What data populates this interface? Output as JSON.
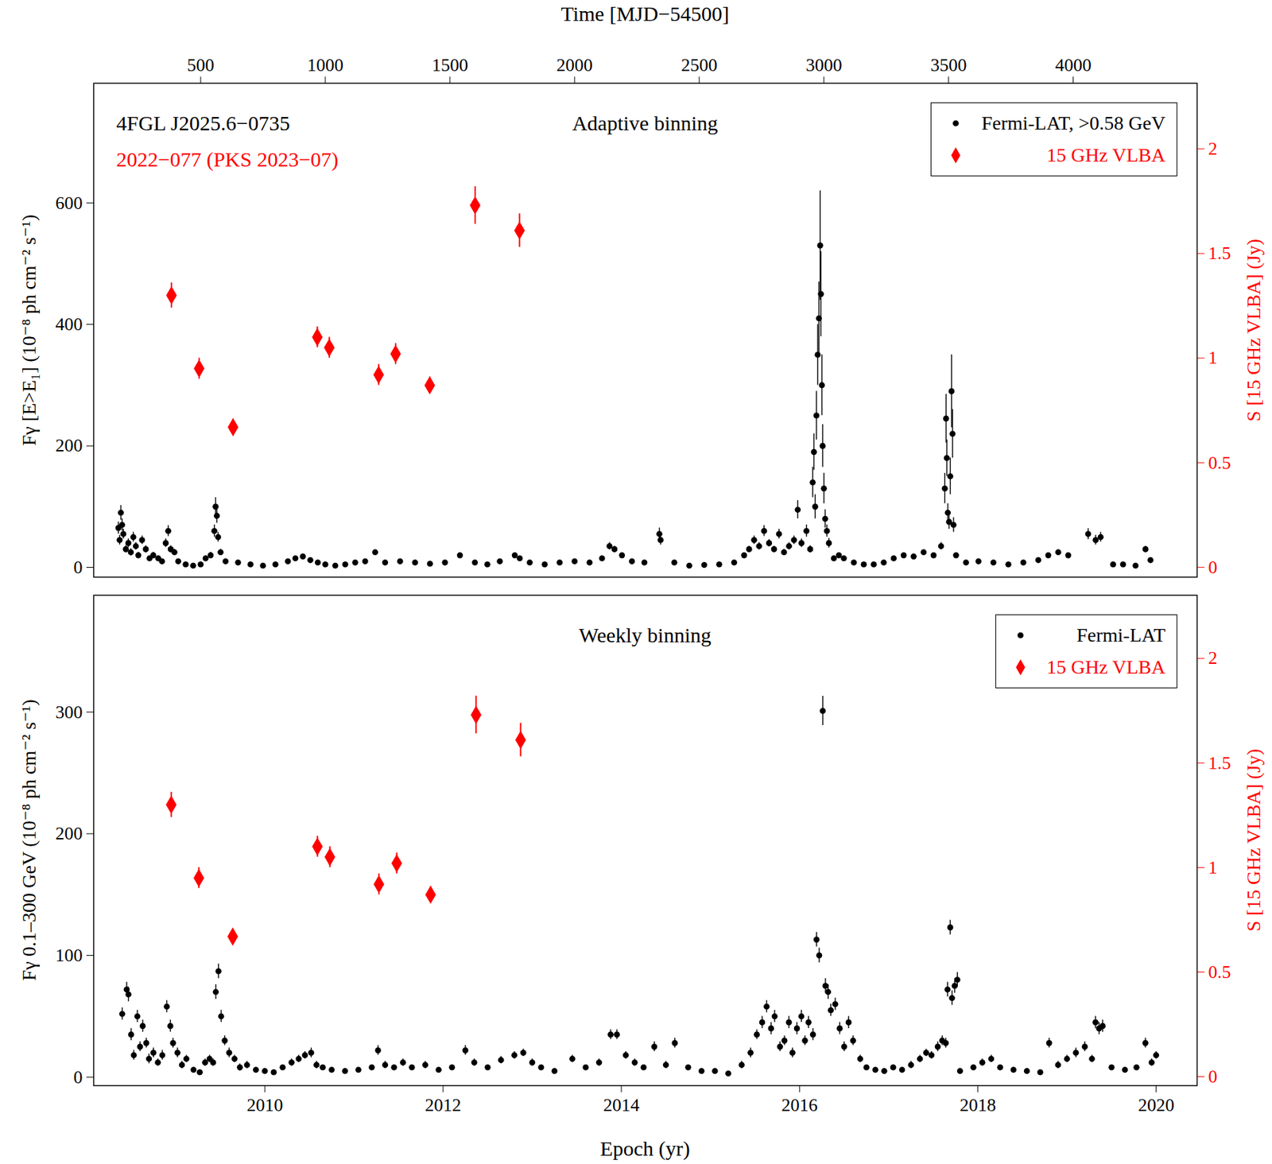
{
  "chart_data": [
    {
      "type": "scatter",
      "title": "Adaptive binning",
      "annotations": [
        {
          "text": "4FGL J2025.6−0735",
          "color": "#000000"
        },
        {
          "text": "2022−077 (PKS 2023−07)",
          "color": "#ff0000"
        }
      ],
      "x_label": "Time [MJD−54500]",
      "xlim": [
        71,
        4497
      ],
      "xticks": [
        500,
        1000,
        1500,
        2000,
        2500,
        3000,
        3500,
        4000
      ],
      "y_label": "Fγ [E>E₁] (10⁻⁸ ph cm⁻² s⁻¹)",
      "ylim": [
        -16,
        797
      ],
      "yticks": [
        0,
        200,
        400,
        600
      ],
      "y2_label": "S [15 GHz VLBA] (Jy)",
      "y2lim": [
        -0.047,
        2.314
      ],
      "y2ticks": [
        0,
        0.5,
        1,
        1.5,
        2
      ],
      "legend": "upper right",
      "series": [
        {
          "name": "Fermi-LAT, >0.58 GeV",
          "color": "#000000",
          "marker": "circle",
          "x": [
            170,
            175,
            180,
            185,
            190,
            200,
            210,
            220,
            230,
            240,
            250,
            265,
            280,
            295,
            310,
            330,
            345,
            360,
            370,
            380,
            395,
            410,
            440,
            470,
            500,
            520,
            540,
            555,
            560,
            565,
            570,
            580,
            600,
            650,
            700,
            750,
            800,
            850,
            880,
            910,
            940,
            970,
            1000,
            1040,
            1080,
            1120,
            1160,
            1200,
            1240,
            1300,
            1360,
            1420,
            1480,
            1540,
            1600,
            1650,
            1700,
            1760,
            1780,
            1820,
            1880,
            1940,
            2000,
            2060,
            2110,
            2140,
            2160,
            2190,
            2230,
            2280,
            2340,
            2345,
            2400,
            2460,
            2520,
            2580,
            2640,
            2680,
            2700,
            2720,
            2740,
            2760,
            2780,
            2800,
            2820,
            2840,
            2860,
            2880,
            2895,
            2910,
            2930,
            2945,
            2955,
            2960,
            2965,
            2970,
            2975,
            2980,
            2985,
            2988,
            2992,
            2995,
            3000,
            3005,
            3012,
            3020,
            3040,
            3060,
            3080,
            3120,
            3160,
            3200,
            3240,
            3280,
            3320,
            3360,
            3400,
            3440,
            3470,
            3485,
            3490,
            3493,
            3497,
            3502,
            3507,
            3512,
            3516,
            3520,
            3530,
            3570,
            3620,
            3680,
            3740,
            3800,
            3860,
            3900,
            3940,
            3980,
            4060,
            4090,
            4110,
            4160,
            4200,
            4250,
            4290,
            4310
          ],
          "values": [
            65,
            45,
            90,
            70,
            55,
            30,
            40,
            25,
            50,
            35,
            20,
            45,
            30,
            15,
            20,
            15,
            10,
            40,
            60,
            30,
            25,
            10,
            5,
            3,
            5,
            15,
            20,
            60,
            100,
            85,
            50,
            25,
            10,
            8,
            5,
            3,
            5,
            10,
            15,
            18,
            12,
            8,
            5,
            3,
            5,
            8,
            10,
            25,
            8,
            10,
            8,
            6,
            8,
            20,
            8,
            5,
            10,
            20,
            15,
            8,
            5,
            8,
            10,
            8,
            15,
            35,
            30,
            20,
            10,
            8,
            55,
            45,
            8,
            3,
            4,
            5,
            8,
            20,
            30,
            45,
            35,
            60,
            40,
            30,
            55,
            25,
            35,
            45,
            95,
            40,
            60,
            30,
            140,
            190,
            100,
            250,
            350,
            410,
            530,
            450,
            300,
            200,
            130,
            80,
            60,
            40,
            15,
            20,
            15,
            8,
            5,
            5,
            8,
            15,
            20,
            18,
            25,
            20,
            35,
            130,
            245,
            180,
            90,
            75,
            150,
            290,
            220,
            70,
            20,
            8,
            10,
            8,
            5,
            8,
            12,
            20,
            25,
            20,
            55,
            45,
            50,
            5,
            5,
            3,
            30,
            12
          ],
          "errors": [
            10,
            8,
            12,
            10,
            8,
            6,
            7,
            6,
            8,
            6,
            5,
            7,
            6,
            4,
            5,
            4,
            3,
            7,
            9,
            6,
            5,
            3,
            2,
            2,
            2,
            4,
            5,
            10,
            15,
            12,
            8,
            5,
            3,
            2,
            2,
            2,
            2,
            3,
            3,
            3,
            3,
            2,
            2,
            2,
            2,
            2,
            2,
            4,
            2,
            2,
            2,
            2,
            2,
            4,
            2,
            2,
            2,
            4,
            3,
            2,
            2,
            2,
            2,
            2,
            3,
            6,
            5,
            4,
            2,
            2,
            10,
            8,
            2,
            2,
            2,
            2,
            2,
            4,
            5,
            7,
            6,
            9,
            6,
            5,
            8,
            5,
            6,
            7,
            15,
            7,
            10,
            6,
            25,
            30,
            20,
            40,
            50,
            60,
            90,
            70,
            50,
            35,
            25,
            15,
            10,
            8,
            4,
            4,
            3,
            2,
            2,
            2,
            2,
            3,
            4,
            3,
            4,
            4,
            6,
            25,
            40,
            30,
            15,
            12,
            30,
            60,
            40,
            12,
            4,
            2,
            2,
            2,
            2,
            2,
            3,
            4,
            4,
            4,
            9,
            8,
            8,
            2,
            2,
            2,
            5,
            3
          ]
        },
        {
          "name": "15 GHz VLBA",
          "color": "#ff0000",
          "marker": "diamond",
          "axis": "y2",
          "x": [
            383,
            494,
            630,
            968,
            1016,
            1214,
            1282,
            1419,
            1601,
            1779
          ],
          "values": [
            1.3,
            0.95,
            0.67,
            1.1,
            1.05,
            0.92,
            1.02,
            0.87,
            1.73,
            1.61
          ],
          "errors": [
            0.06,
            0.05,
            0.03,
            0.05,
            0.05,
            0.05,
            0.05,
            0.04,
            0.09,
            0.08
          ]
        }
      ]
    },
    {
      "type": "scatter",
      "title": "Weekly binning",
      "x_label": "Epoch (yr)",
      "xlim": [
        2008.08,
        2020.46
      ],
      "xticks": [
        2010,
        2012,
        2014,
        2016,
        2018,
        2020
      ],
      "y_label": "Fγ 0.1–300 GeV (10⁻⁸ ph cm⁻² s⁻¹)",
      "ylim": [
        -7,
        396
      ],
      "yticks": [
        0,
        100,
        200,
        300
      ],
      "y2_label": "S [15 GHz VLBA] (Jy)",
      "y2lim": [
        -0.043,
        2.302
      ],
      "y2ticks": [
        0,
        0.5,
        1,
        1.5,
        2
      ],
      "legend": "upper right",
      "series": [
        {
          "name": "Fermi-LAT",
          "color": "#000000",
          "marker": "circle",
          "x": [
            2008.4,
            2008.45,
            2008.47,
            2008.5,
            2008.53,
            2008.57,
            2008.6,
            2008.63,
            2008.67,
            2008.7,
            2008.75,
            2008.8,
            2008.85,
            2008.9,
            2008.94,
            2008.97,
            2009.02,
            2009.07,
            2009.12,
            2009.2,
            2009.27,
            2009.33,
            2009.38,
            2009.42,
            2009.45,
            2009.48,
            2009.51,
            2009.55,
            2009.6,
            2009.66,
            2009.72,
            2009.8,
            2009.9,
            2010.0,
            2010.1,
            2010.2,
            2010.3,
            2010.38,
            2010.45,
            2010.52,
            2010.58,
            2010.65,
            2010.75,
            2010.9,
            2011.05,
            2011.2,
            2011.27,
            2011.35,
            2011.45,
            2011.55,
            2011.65,
            2011.8,
            2011.95,
            2012.1,
            2012.25,
            2012.35,
            2012.5,
            2012.65,
            2012.8,
            2012.9,
            2013.0,
            2013.1,
            2013.25,
            2013.45,
            2013.6,
            2013.75,
            2013.88,
            2013.95,
            2014.05,
            2014.15,
            2014.25,
            2014.37,
            2014.5,
            2014.6,
            2014.75,
            2014.9,
            2015.05,
            2015.2,
            2015.35,
            2015.45,
            2015.52,
            2015.58,
            2015.63,
            2015.68,
            2015.72,
            2015.78,
            2015.83,
            2015.88,
            2015.92,
            2015.97,
            2016.02,
            2016.06,
            2016.1,
            2016.15,
            2016.19,
            2016.22,
            2016.26,
            2016.29,
            2016.32,
            2016.35,
            2016.4,
            2016.45,
            2016.5,
            2016.55,
            2016.6,
            2016.68,
            2016.75,
            2016.85,
            2016.95,
            2017.05,
            2017.15,
            2017.25,
            2017.35,
            2017.42,
            2017.48,
            2017.55,
            2017.6,
            2017.64,
            2017.66,
            2017.69,
            2017.71,
            2017.74,
            2017.77,
            2017.8,
            2017.95,
            2018.05,
            2018.15,
            2018.25,
            2018.4,
            2018.55,
            2018.7,
            2018.8,
            2018.9,
            2019.0,
            2019.1,
            2019.2,
            2019.28,
            2019.32,
            2019.36,
            2019.4,
            2019.5,
            2019.65,
            2019.78,
            2019.88,
            2019.95,
            2020.0
          ],
          "values": [
            52,
            72,
            68,
            35,
            18,
            50,
            25,
            42,
            28,
            15,
            20,
            12,
            18,
            58,
            42,
            28,
            20,
            10,
            15,
            6,
            4,
            12,
            15,
            12,
            70,
            87,
            50,
            30,
            20,
            15,
            8,
            10,
            6,
            5,
            4,
            8,
            12,
            15,
            18,
            20,
            10,
            8,
            6,
            5,
            6,
            8,
            22,
            10,
            8,
            12,
            8,
            10,
            6,
            8,
            22,
            12,
            8,
            14,
            18,
            20,
            12,
            8,
            5,
            15,
            8,
            12,
            35,
            35,
            18,
            12,
            8,
            25,
            10,
            28,
            8,
            5,
            5,
            3,
            10,
            20,
            35,
            45,
            58,
            40,
            50,
            25,
            30,
            45,
            20,
            40,
            50,
            30,
            45,
            35,
            113,
            100,
            301,
            75,
            70,
            55,
            60,
            40,
            25,
            45,
            30,
            15,
            8,
            6,
            5,
            8,
            6,
            10,
            15,
            20,
            18,
            25,
            30,
            28,
            72,
            123,
            65,
            75,
            80,
            5,
            8,
            12,
            15,
            8,
            6,
            5,
            4,
            28,
            10,
            15,
            20,
            25,
            15,
            45,
            40,
            42,
            8,
            6,
            8,
            28,
            12,
            18
          ],
          "errors": [
            5,
            6,
            6,
            5,
            4,
            5,
            4,
            5,
            4,
            4,
            4,
            3,
            4,
            5,
            5,
            4,
            4,
            3,
            3,
            2,
            2,
            3,
            3,
            3,
            6,
            6,
            5,
            4,
            4,
            3,
            3,
            3,
            2,
            2,
            2,
            2,
            3,
            3,
            3,
            4,
            3,
            2,
            2,
            2,
            2,
            2,
            4,
            3,
            2,
            3,
            2,
            3,
            2,
            2,
            4,
            3,
            2,
            3,
            3,
            3,
            3,
            2,
            2,
            3,
            2,
            3,
            4,
            4,
            3,
            3,
            2,
            4,
            3,
            4,
            2,
            2,
            2,
            2,
            3,
            4,
            4,
            5,
            5,
            5,
            5,
            4,
            4,
            5,
            4,
            5,
            5,
            4,
            5,
            5,
            6,
            6,
            12,
            6,
            6,
            5,
            5,
            5,
            4,
            5,
            4,
            3,
            2,
            2,
            2,
            2,
            2,
            3,
            3,
            3,
            3,
            4,
            4,
            4,
            6,
            6,
            6,
            6,
            6,
            2,
            2,
            3,
            3,
            2,
            2,
            2,
            2,
            4,
            3,
            3,
            4,
            4,
            3,
            5,
            5,
            5,
            2,
            2,
            2,
            4,
            3,
            3
          ]
        },
        {
          "name": "15 GHz VLBA",
          "color": "#ff0000",
          "marker": "diamond",
          "axis": "y2",
          "x": [
            2008.95,
            2009.26,
            2009.64,
            2010.59,
            2010.73,
            2011.28,
            2011.48,
            2011.86,
            2012.37,
            2012.87
          ],
          "values": [
            1.3,
            0.95,
            0.67,
            1.1,
            1.05,
            0.92,
            1.02,
            0.87,
            1.73,
            1.61
          ],
          "errors": [
            0.06,
            0.05,
            0.03,
            0.05,
            0.05,
            0.05,
            0.05,
            0.04,
            0.09,
            0.08
          ]
        }
      ]
    }
  ]
}
